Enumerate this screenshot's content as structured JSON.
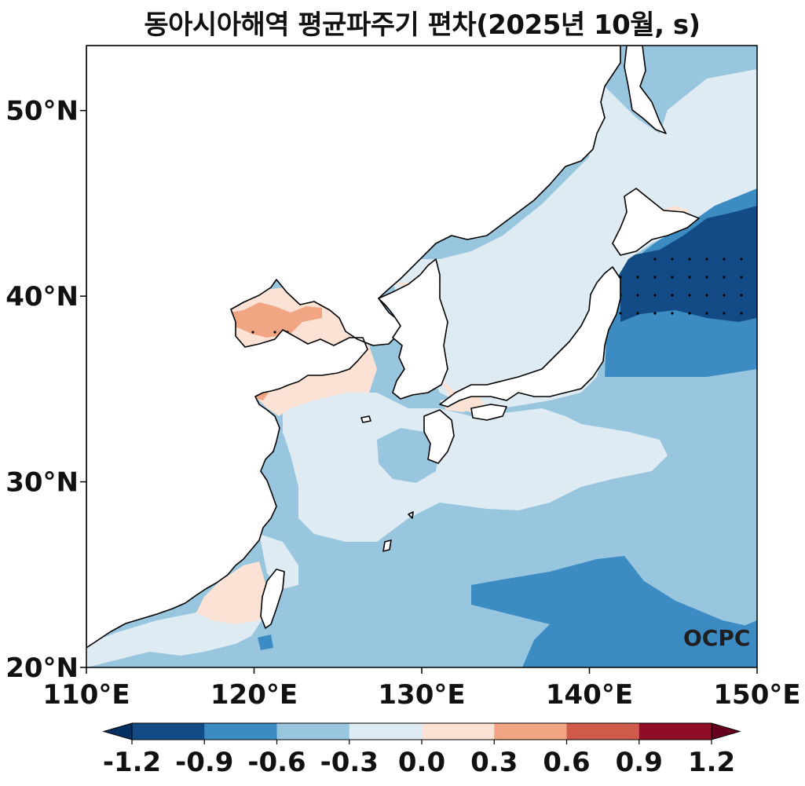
{
  "title": "동아시아해역 평균파주기 편차(2025년 10월, s)",
  "map": {
    "lon_range": [
      110,
      150
    ],
    "lat_range": [
      20,
      53.5
    ],
    "x_ticks": [
      {
        "value": 110,
        "label": "110°E"
      },
      {
        "value": 120,
        "label": "120°E"
      },
      {
        "value": 130,
        "label": "130°E"
      },
      {
        "value": 140,
        "label": "140°E"
      },
      {
        "value": 150,
        "label": "150°E"
      }
    ],
    "y_ticks": [
      {
        "value": 20,
        "label": "20°N"
      },
      {
        "value": 30,
        "label": "30°N"
      },
      {
        "value": 40,
        "label": "40°N"
      },
      {
        "value": 50,
        "label": "50°N"
      }
    ],
    "logo": "OCPC"
  },
  "colorbar": {
    "levels": [
      -1.2,
      -0.9,
      -0.6,
      -0.3,
      0.0,
      0.3,
      0.6,
      0.9,
      1.2
    ],
    "labels": [
      "-1.2",
      "-0.9",
      "-0.6",
      "-0.3",
      "0.0",
      "0.3",
      "0.6",
      "0.9",
      "1.2"
    ],
    "colors": [
      "#134b87",
      "#3c8bc3",
      "#98c6df",
      "#deebf3",
      "#fbe2d5",
      "#f2a583",
      "#d05b4a",
      "#8f0d25"
    ],
    "under_color": "#053061",
    "over_color": "#67001f"
  }
}
